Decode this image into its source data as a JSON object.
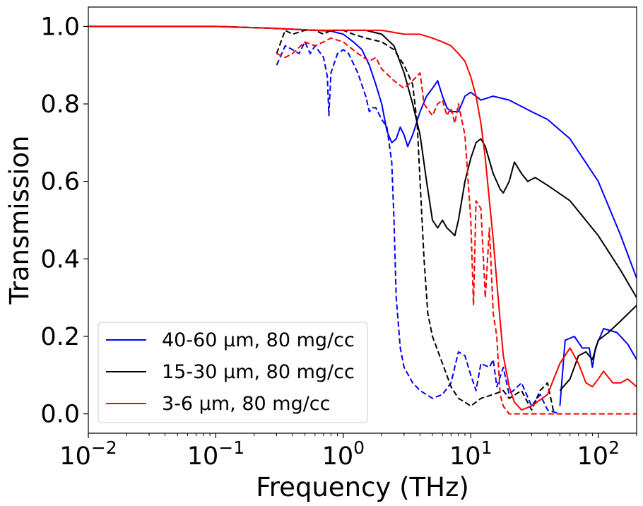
{
  "chart_data": {
    "type": "line",
    "xlabel": "Frequency (THz)",
    "ylabel": "Transmission",
    "xscale": "log",
    "xlim": [
      0.01,
      200
    ],
    "ylim": [
      -0.05,
      1.05
    ],
    "grid": false,
    "legend_position": "lower-left",
    "x_ticks": [
      {
        "value": 0.01,
        "base": "10",
        "exp": "−2"
      },
      {
        "value": 0.1,
        "base": "10",
        "exp": "−1"
      },
      {
        "value": 1,
        "base": "10",
        "exp": "0"
      },
      {
        "value": 10,
        "base": "10",
        "exp": "1"
      },
      {
        "value": 100,
        "base": "10",
        "exp": "2"
      }
    ],
    "y_ticks": [
      {
        "value": 0.0,
        "label": "0.0"
      },
      {
        "value": 0.2,
        "label": "0.2"
      },
      {
        "value": 0.4,
        "label": "0.4"
      },
      {
        "value": 0.6,
        "label": "0.6"
      },
      {
        "value": 0.8,
        "label": "0.8"
      },
      {
        "value": 1.0,
        "label": "1.0"
      }
    ],
    "legend": [
      {
        "label": "40-60 μm, 80 mg/cc",
        "color": "#0000ff"
      },
      {
        "label": "15-30 μm, 80 mg/cc",
        "color": "#000000"
      },
      {
        "label": "3-6 μm, 80 mg/cc",
        "color": "#ff0000"
      }
    ],
    "series": [
      {
        "color": "#0000ff",
        "style": "solid",
        "points": [
          [
            0.01,
            1.0
          ],
          [
            0.1,
            1.0
          ],
          [
            0.3,
            0.995
          ],
          [
            0.6,
            0.99
          ],
          [
            0.8,
            0.988
          ],
          [
            1.0,
            0.98
          ],
          [
            1.2,
            0.96
          ],
          [
            1.4,
            0.94
          ],
          [
            1.6,
            0.9
          ],
          [
            1.8,
            0.85
          ],
          [
            2.0,
            0.8
          ],
          [
            2.2,
            0.73
          ],
          [
            2.4,
            0.7
          ],
          [
            2.6,
            0.71
          ],
          [
            2.8,
            0.74
          ],
          [
            3.0,
            0.72
          ],
          [
            3.2,
            0.69
          ],
          [
            3.5,
            0.72
          ],
          [
            4.0,
            0.78
          ],
          [
            4.5,
            0.82
          ],
          [
            5.0,
            0.84
          ],
          [
            5.5,
            0.86
          ],
          [
            6.0,
            0.82
          ],
          [
            6.5,
            0.79
          ],
          [
            7.0,
            0.78
          ],
          [
            8.0,
            0.78
          ],
          [
            9.0,
            0.82
          ],
          [
            10.0,
            0.83
          ],
          [
            12.0,
            0.81
          ],
          [
            15.0,
            0.82
          ],
          [
            20.0,
            0.81
          ],
          [
            30.0,
            0.78
          ],
          [
            40.0,
            0.76
          ],
          [
            60.0,
            0.71
          ],
          [
            100.0,
            0.6
          ],
          [
            150.0,
            0.46
          ],
          [
            200.0,
            0.35
          ]
        ]
      },
      {
        "color": "#0000ff",
        "style": "dashed",
        "points": [
          [
            0.3,
            0.9
          ],
          [
            0.35,
            0.95
          ],
          [
            0.4,
            0.94
          ],
          [
            0.45,
            0.93
          ],
          [
            0.5,
            0.96
          ],
          [
            0.55,
            0.93
          ],
          [
            0.6,
            0.95
          ],
          [
            0.7,
            0.92
          ],
          [
            0.75,
            0.87
          ],
          [
            0.77,
            0.77
          ],
          [
            0.8,
            0.88
          ],
          [
            0.9,
            0.93
          ],
          [
            1.0,
            0.94
          ],
          [
            1.1,
            0.93
          ],
          [
            1.3,
            0.88
          ],
          [
            1.5,
            0.82
          ],
          [
            1.6,
            0.78
          ],
          [
            1.7,
            0.79
          ],
          [
            1.8,
            0.79
          ],
          [
            2.0,
            0.76
          ],
          [
            2.2,
            0.74
          ],
          [
            2.4,
            0.65
          ],
          [
            2.5,
            0.5
          ],
          [
            2.6,
            0.3
          ],
          [
            2.8,
            0.17
          ],
          [
            3.0,
            0.12
          ],
          [
            3.5,
            0.08
          ],
          [
            4.0,
            0.06
          ],
          [
            5.0,
            0.04
          ],
          [
            6.0,
            0.05
          ],
          [
            7.0,
            0.08
          ],
          [
            8.0,
            0.16
          ],
          [
            9.0,
            0.15
          ],
          [
            10.0,
            0.1
          ],
          [
            11.0,
            0.06
          ],
          [
            12.0,
            0.13
          ],
          [
            14.0,
            0.12
          ],
          [
            15.0,
            0.14
          ],
          [
            16.0,
            0.07
          ],
          [
            18.0,
            0.12
          ],
          [
            20.0,
            0.05
          ],
          [
            25.0,
            0.08
          ],
          [
            30.0,
            0.02
          ],
          [
            35.0,
            0.05
          ],
          [
            40.0,
            0.01
          ],
          [
            50.0,
            0.0
          ]
        ]
      },
      {
        "color": "#0000ff",
        "style": "solid",
        "points": [
          [
            50.0,
            0.02
          ],
          [
            55.0,
            0.19
          ],
          [
            65.0,
            0.2
          ],
          [
            75.0,
            0.17
          ],
          [
            85.0,
            0.17
          ],
          [
            90.0,
            0.12
          ],
          [
            95.0,
            0.17
          ],
          [
            110.0,
            0.22
          ],
          [
            140.0,
            0.21
          ],
          [
            170.0,
            0.18
          ],
          [
            200.0,
            0.14
          ]
        ]
      },
      {
        "color": "#000000",
        "style": "solid",
        "points": [
          [
            0.01,
            1.0
          ],
          [
            0.1,
            1.0
          ],
          [
            0.3,
            0.995
          ],
          [
            0.6,
            0.99
          ],
          [
            1.0,
            0.99
          ],
          [
            1.5,
            0.99
          ],
          [
            2.0,
            0.98
          ],
          [
            2.5,
            0.95
          ],
          [
            3.0,
            0.88
          ],
          [
            3.5,
            0.8
          ],
          [
            4.0,
            0.72
          ],
          [
            4.5,
            0.6
          ],
          [
            5.0,
            0.5
          ],
          [
            5.5,
            0.48
          ],
          [
            6.0,
            0.5
          ],
          [
            6.5,
            0.48
          ],
          [
            7.0,
            0.47
          ],
          [
            7.5,
            0.46
          ],
          [
            8.0,
            0.5
          ],
          [
            9.0,
            0.6
          ],
          [
            10.0,
            0.66
          ],
          [
            11.0,
            0.7
          ],
          [
            12.0,
            0.71
          ],
          [
            13.0,
            0.69
          ],
          [
            15.0,
            0.62
          ],
          [
            17.0,
            0.58
          ],
          [
            18.0,
            0.57
          ],
          [
            20.0,
            0.6
          ],
          [
            22.0,
            0.65
          ],
          [
            25.0,
            0.62
          ],
          [
            28.0,
            0.6
          ],
          [
            32.0,
            0.61
          ],
          [
            40.0,
            0.59
          ],
          [
            60.0,
            0.55
          ],
          [
            100.0,
            0.46
          ],
          [
            150.0,
            0.37
          ],
          [
            200.0,
            0.3
          ]
        ]
      },
      {
        "color": "#000000",
        "style": "dashed",
        "points": [
          [
            0.3,
            0.93
          ],
          [
            0.35,
            0.99
          ],
          [
            0.4,
            0.98
          ],
          [
            0.5,
            0.99
          ],
          [
            0.6,
            0.99
          ],
          [
            0.7,
            0.98
          ],
          [
            0.8,
            0.99
          ],
          [
            1.0,
            0.99
          ],
          [
            1.2,
            0.98
          ],
          [
            1.5,
            0.97
          ],
          [
            2.0,
            0.96
          ],
          [
            2.5,
            0.94
          ],
          [
            3.0,
            0.9
          ],
          [
            3.5,
            0.85
          ],
          [
            3.8,
            0.75
          ],
          [
            4.0,
            0.6
          ],
          [
            4.3,
            0.4
          ],
          [
            4.6,
            0.26
          ],
          [
            5.0,
            0.2
          ],
          [
            6.0,
            0.13
          ],
          [
            7.0,
            0.07
          ],
          [
            8.0,
            0.04
          ],
          [
            9.0,
            0.03
          ],
          [
            10.0,
            0.02
          ],
          [
            12.0,
            0.04
          ],
          [
            15.0,
            0.05
          ],
          [
            18.0,
            0.06
          ],
          [
            20.0,
            0.04
          ],
          [
            25.0,
            0.06
          ],
          [
            30.0,
            0.01
          ],
          [
            35.0,
            0.06
          ],
          [
            40.0,
            0.08
          ],
          [
            45.0,
            0.0
          ]
        ]
      },
      {
        "color": "#000000",
        "style": "solid",
        "points": [
          [
            50.0,
            0.06
          ],
          [
            60.0,
            0.09
          ],
          [
            70.0,
            0.15
          ],
          [
            80.0,
            0.16
          ],
          [
            90.0,
            0.14
          ],
          [
            100.0,
            0.19
          ],
          [
            120.0,
            0.21
          ],
          [
            150.0,
            0.24
          ],
          [
            200.0,
            0.28
          ]
        ]
      },
      {
        "color": "#ff0000",
        "style": "solid",
        "points": [
          [
            0.01,
            1.0
          ],
          [
            0.1,
            1.0
          ],
          [
            0.3,
            0.995
          ],
          [
            0.6,
            0.99
          ],
          [
            1.0,
            0.99
          ],
          [
            2.0,
            0.99
          ],
          [
            3.0,
            0.98
          ],
          [
            4.0,
            0.98
          ],
          [
            5.0,
            0.97
          ],
          [
            6.0,
            0.96
          ],
          [
            7.0,
            0.95
          ],
          [
            8.0,
            0.93
          ],
          [
            9.0,
            0.91
          ],
          [
            10.0,
            0.87
          ],
          [
            11.0,
            0.82
          ],
          [
            12.0,
            0.75
          ],
          [
            13.0,
            0.66
          ],
          [
            14.0,
            0.55
          ],
          [
            15.0,
            0.45
          ],
          [
            16.0,
            0.34
          ],
          [
            17.0,
            0.24
          ],
          [
            18.0,
            0.15
          ],
          [
            20.0,
            0.07
          ],
          [
            22.0,
            0.03
          ],
          [
            25.0,
            0.01
          ],
          [
            30.0,
            0.02
          ],
          [
            40.0,
            0.05
          ],
          [
            50.0,
            0.13
          ],
          [
            60.0,
            0.17
          ],
          [
            70.0,
            0.13
          ],
          [
            80.0,
            0.08
          ],
          [
            90.0,
            0.07
          ],
          [
            100.0,
            0.09
          ],
          [
            110.0,
            0.11
          ],
          [
            130.0,
            0.08
          ],
          [
            150.0,
            0.08
          ],
          [
            170.0,
            0.09
          ],
          [
            200.0,
            0.07
          ]
        ]
      },
      {
        "color": "#ff0000",
        "style": "dashed",
        "points": [
          [
            0.3,
            0.93
          ],
          [
            0.35,
            0.92
          ],
          [
            0.4,
            0.93
          ],
          [
            0.5,
            0.96
          ],
          [
            0.6,
            0.95
          ],
          [
            0.7,
            0.96
          ],
          [
            0.8,
            0.97
          ],
          [
            1.0,
            0.96
          ],
          [
            1.3,
            0.93
          ],
          [
            1.6,
            0.91
          ],
          [
            1.8,
            0.92
          ],
          [
            2.0,
            0.89
          ],
          [
            2.5,
            0.86
          ],
          [
            3.0,
            0.84
          ],
          [
            3.5,
            0.86
          ],
          [
            4.0,
            0.88
          ],
          [
            4.3,
            0.8
          ],
          [
            5.0,
            0.77
          ],
          [
            5.5,
            0.8
          ],
          [
            6.0,
            0.81
          ],
          [
            6.5,
            0.77
          ],
          [
            7.0,
            0.79
          ],
          [
            7.5,
            0.75
          ],
          [
            8.0,
            0.8
          ],
          [
            9.0,
            0.72
          ],
          [
            10.0,
            0.5
          ],
          [
            10.5,
            0.28
          ],
          [
            11.0,
            0.55
          ],
          [
            12.0,
            0.53
          ],
          [
            13.0,
            0.3
          ],
          [
            14.0,
            0.48
          ],
          [
            15.0,
            0.26
          ],
          [
            16.0,
            0.2
          ],
          [
            17.0,
            0.05
          ],
          [
            18.0,
            0.02
          ],
          [
            20.0,
            0.0
          ],
          [
            200.0,
            0.0
          ]
        ]
      }
    ]
  }
}
